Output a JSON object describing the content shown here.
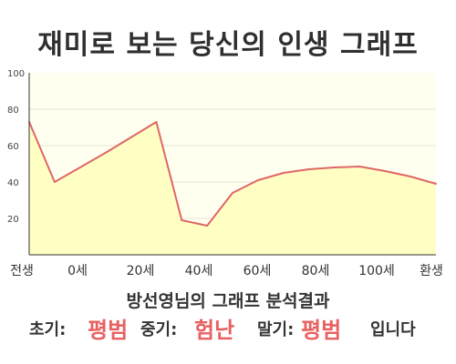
{
  "title": "재미로 보는 당신의 인생 그래프",
  "colors": {
    "plot_background": "#fffff0",
    "area_fill": "#ffffc4",
    "line": "#e06666",
    "axis": "#333333",
    "grid": "#e6e6d8",
    "highlight": "#e86060"
  },
  "chart_data": {
    "type": "area",
    "title": "재미로 보는 당신의 인생 그래프",
    "x": [
      -5,
      0,
      10,
      20,
      25,
      30,
      35,
      40,
      45,
      50,
      55,
      60,
      65,
      70,
      75
    ],
    "y": [
      73,
      40,
      56,
      73,
      19,
      16,
      34,
      41,
      45,
      47,
      48,
      48.5,
      46,
      43,
      39
    ],
    "x_tick_labels": [
      "전생",
      "0세",
      "20세",
      "40세",
      "60세",
      "80세",
      "100세",
      "환생"
    ],
    "y_ticks": [
      20,
      40,
      60,
      80,
      100
    ],
    "ylim": [
      0,
      100
    ],
    "xlabel": "",
    "ylabel": "",
    "grid": false
  },
  "result": {
    "subtitle": "방선영님의 그래프 분석결과",
    "early_label": "초기:",
    "early_value": "평범",
    "middle_label": "중기:",
    "middle_value": "험난",
    "late_label": "말기:",
    "late_value": "평범",
    "suffix": "입니다"
  }
}
